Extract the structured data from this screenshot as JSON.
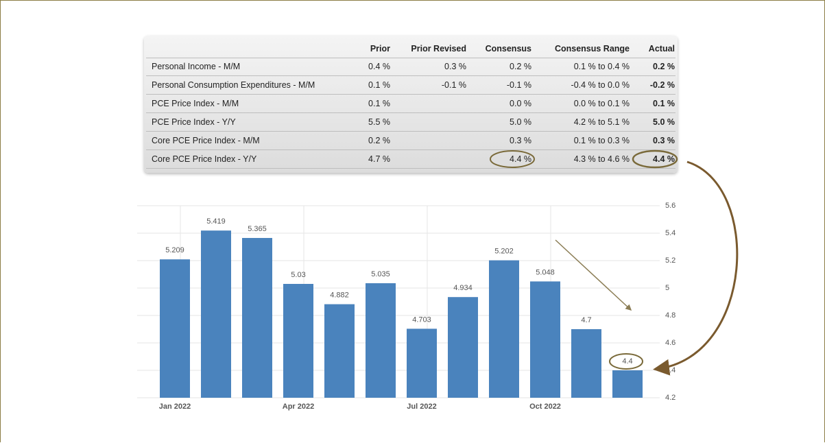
{
  "table": {
    "columns": [
      "Prior",
      "Prior Revised",
      "Consensus",
      "Consensus Range",
      "Actual"
    ],
    "rows": [
      {
        "label": "Personal Income - M/M",
        "cells": [
          "0.4 %",
          "0.3 %",
          "0.2 %",
          "0.1 % to 0.4 %",
          "0.2 %"
        ]
      },
      {
        "label": "Personal Consumption Expenditures - M/M",
        "cells": [
          "0.1 %",
          "-0.1 %",
          "-0.1 %",
          "-0.4 % to 0.0 %",
          "-0.2 %"
        ]
      },
      {
        "label": "PCE Price Index - M/M",
        "cells": [
          "0.1 %",
          null,
          "0.0 %",
          "0.0 % to 0.1 %",
          "0.1 %"
        ]
      },
      {
        "label": "PCE Price Index - Y/Y",
        "cells": [
          "5.5 %",
          null,
          "5.0 %",
          "4.2 % to 5.1 %",
          "5.0 %"
        ]
      },
      {
        "label": "Core PCE Price Index - M/M",
        "cells": [
          "0.2 %",
          null,
          "0.3 %",
          "0.1 % to 0.3 %",
          "0.3 %"
        ]
      },
      {
        "label": "Core PCE Price Index - Y/Y",
        "cells": [
          "4.7 %",
          null,
          "4.4 %",
          "4.3 % to 4.6 %",
          "4.4 %"
        ]
      }
    ]
  },
  "chart_data": {
    "type": "bar",
    "categories": [
      "Jan 2022",
      null,
      null,
      "Apr 2022",
      null,
      null,
      "Jul 2022",
      null,
      null,
      "Oct 2022",
      null,
      null
    ],
    "values": [
      5.209,
      5.419,
      5.365,
      5.03,
      4.882,
      5.035,
      4.703,
      4.934,
      5.202,
      5.048,
      4.7,
      4.4
    ],
    "color": "#4a83bd",
    "ylim": [
      4.2,
      5.6
    ],
    "yticks": [
      4.2,
      4.4,
      4.6,
      4.8,
      5,
      5.2,
      5.4,
      5.6
    ],
    "grid": true
  }
}
